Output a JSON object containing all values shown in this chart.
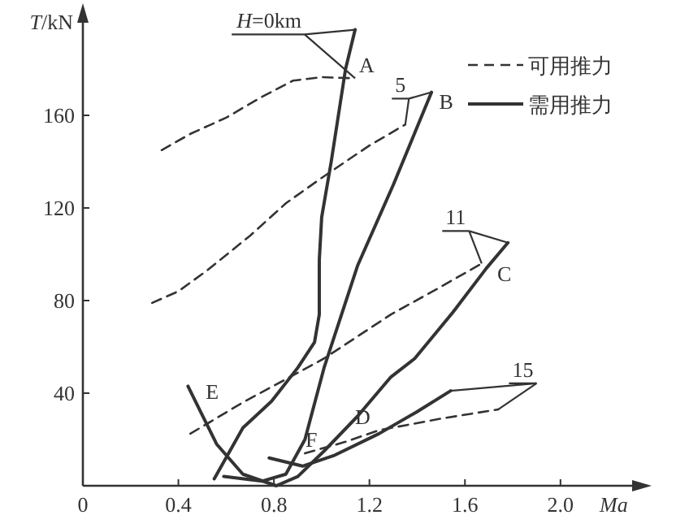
{
  "chart_data": {
    "type": "line",
    "xlabel": "Ma",
    "ylabel": "T/kN",
    "xlim": [
      0,
      2.3
    ],
    "ylim": [
      0,
      200
    ],
    "xticks": [
      0,
      0.4,
      0.8,
      1.2,
      1.6,
      {
        "value": 2.0,
        "label": "2.0"
      }
    ],
    "yticks": [
      {
        "value": 0,
        "label": null
      },
      40,
      80,
      120,
      160
    ],
    "grid": false,
    "legend": "top right",
    "marker": "none",
    "series": [
      {
        "name": "可用推力",
        "color": "#333333",
        "line_style": "dashed",
        "x": [
          0.33,
          0.45,
          0.6,
          0.75,
          0.88,
          1.0,
          1.14
        ],
        "values": [
          145,
          152,
          159,
          168,
          175,
          176.5,
          176
        ]
      },
      {
        "color": "#333333",
        "line_style": "dashed",
        "x": [
          0.29,
          0.4,
          0.52,
          0.7,
          0.85,
          1.0,
          1.2,
          1.35
        ],
        "values": [
          79,
          84,
          93,
          108,
          122,
          133,
          147,
          156
        ]
      },
      {
        "color": "#333333",
        "line_style": "dashed",
        "x": [
          0.45,
          0.67,
          0.85,
          1.01,
          1.29,
          1.5,
          1.67
        ],
        "values": [
          22.5,
          36,
          46,
          55,
          74,
          86,
          96
        ]
      },
      {
        "color": "#333333",
        "line_style": "dashed",
        "x": [
          0.93,
          1.1,
          1.24,
          1.5,
          1.74
        ],
        "values": [
          14,
          19,
          24,
          29,
          33
        ]
      },
      {
        "name": "需用推力",
        "color": "#333333",
        "line_style": "solid",
        "x": [
          0.55,
          0.67,
          0.79,
          0.9,
          0.97,
          0.99,
          0.99,
          1.0,
          1.04,
          1.1,
          1.14
        ],
        "values": [
          3,
          25,
          36.5,
          51,
          62,
          74,
          97.5,
          116,
          140,
          180,
          197
        ]
      },
      {
        "color": "#333333",
        "line_style": "solid",
        "x": [
          0.59,
          0.75,
          0.85,
          0.93,
          1.01,
          1.15,
          1.3,
          1.46
        ],
        "values": [
          4,
          2,
          5,
          20,
          51,
          95,
          130,
          170
        ]
      },
      {
        "color": "#333333",
        "line_style": "solid",
        "x": [
          0.44,
          0.56,
          0.67,
          0.81,
          0.9,
          1.01,
          1.15,
          1.29,
          1.39,
          1.55,
          1.69,
          1.78
        ],
        "values": [
          43,
          18,
          5,
          0,
          4,
          15,
          30,
          47,
          55,
          75,
          94,
          105
        ]
      },
      {
        "color": "#333333",
        "line_style": "solid",
        "x": [
          0.78,
          0.92,
          1.05,
          1.24,
          1.4,
          1.54
        ],
        "values": [
          12,
          8.5,
          13,
          22.5,
          32,
          41
        ]
      }
    ],
    "annotations": [
      {
        "text": "H=0km",
        "x": 1.14,
        "y": 176
      },
      {
        "text": "5",
        "x": 1.35,
        "y": 156
      },
      {
        "text": "11",
        "x": 1.67,
        "y": 96
      },
      {
        "text": "15",
        "x": 1.74,
        "y": 33
      },
      {
        "text": "A",
        "x": 1.1,
        "y": 180
      },
      {
        "text": "B",
        "x": 1.46,
        "y": 170
      },
      {
        "text": "C",
        "x": 1.69,
        "y": 94
      },
      {
        "text": "D",
        "x": 1.24,
        "y": 24
      },
      {
        "text": "E",
        "x": 0.44,
        "y": 43
      },
      {
        "text": "F",
        "x": 0.93,
        "y": 14
      }
    ]
  }
}
